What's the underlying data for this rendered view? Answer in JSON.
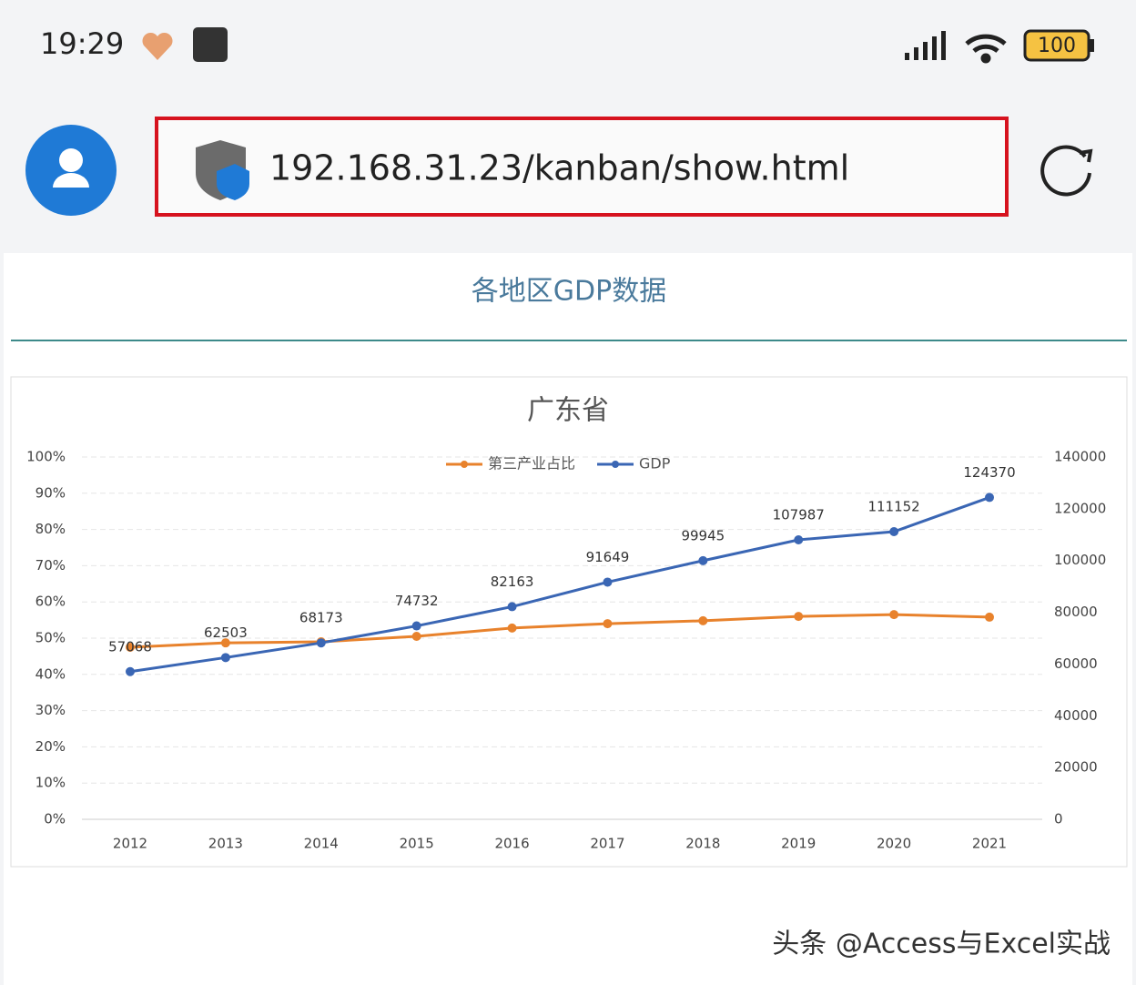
{
  "status_bar": {
    "time": "19:29",
    "battery": "100"
  },
  "address_bar": {
    "url": "192.168.31.23/kanban/show.html"
  },
  "page": {
    "title": "各地区GDP数据"
  },
  "chart_data": {
    "type": "line",
    "title": "广东省",
    "categories": [
      "2012",
      "2013",
      "2014",
      "2015",
      "2016",
      "2017",
      "2018",
      "2019",
      "2020",
      "2021"
    ],
    "series": [
      {
        "name": "第三产业占比",
        "color": "#e8822c",
        "values": [
          47.5,
          48.7,
          49.0,
          50.5,
          52.8,
          54.0,
          54.8,
          56.0,
          56.5,
          55.8
        ]
      },
      {
        "name": "GDP",
        "color": "#3a66b4",
        "axis": "y2",
        "data_labels": true,
        "values": [
          57068,
          62503,
          68173,
          74732,
          82163,
          91649,
          99945,
          107987,
          111152,
          124370
        ]
      }
    ],
    "ylim": [
      0,
      100
    ],
    "yticks": [
      {
        "value": 0,
        "label": "0%"
      },
      {
        "value": 10,
        "label": "10%"
      },
      {
        "value": 20,
        "label": "20%"
      },
      {
        "value": 30,
        "label": "30%"
      },
      {
        "value": 40,
        "label": "40%"
      },
      {
        "value": 50,
        "label": "50%"
      },
      {
        "value": 60,
        "label": "60%"
      },
      {
        "value": 70,
        "label": "70%"
      },
      {
        "value": 80,
        "label": "80%"
      },
      {
        "value": 90,
        "label": "90%"
      },
      {
        "value": 100,
        "label": "100%"
      }
    ],
    "y2lim": [
      0,
      140000
    ],
    "y2ticks": [
      0,
      20000,
      40000,
      60000,
      80000,
      100000,
      120000,
      140000
    ],
    "grid": true,
    "legend": "top"
  },
  "watermark": "头条 @Access与Excel实战"
}
